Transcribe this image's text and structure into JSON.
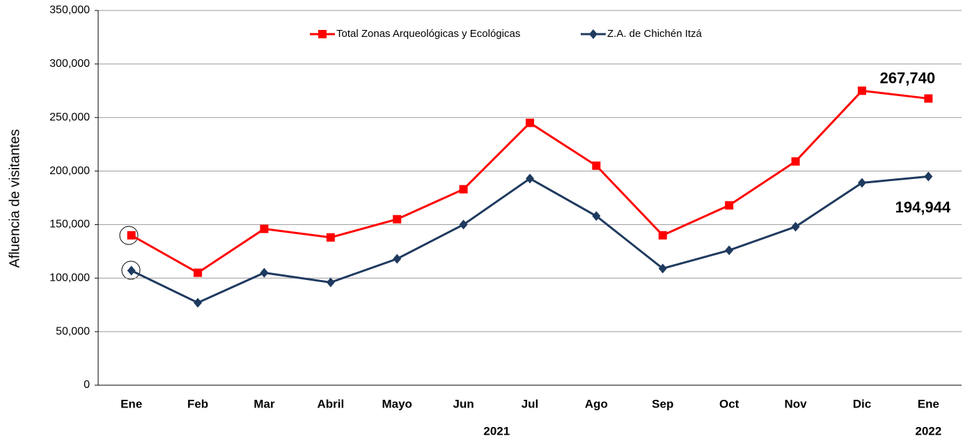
{
  "chart_data": {
    "type": "line",
    "y_label": "Afluencia de visitantes",
    "categories": [
      "Ene",
      "Feb",
      "Mar",
      "Abril",
      "Mayo",
      "Jun",
      "Jul",
      "Ago",
      "Sep",
      "Oct",
      "Nov",
      "Dic",
      "Ene"
    ],
    "year_labels": [
      "2021",
      "2022"
    ],
    "series": [
      {
        "name": "Total Zonas Arqueológicas y Ecológicas",
        "color": "#ff0000",
        "marker": "square",
        "values": [
          140000,
          105000,
          146000,
          138000,
          155000,
          183000,
          245000,
          205000,
          140000,
          168000,
          209000,
          275000,
          267740
        ],
        "value_labels": [
          null,
          null,
          null,
          null,
          null,
          null,
          null,
          null,
          null,
          null,
          null,
          null,
          "267,740"
        ]
      },
      {
        "name": "Z.A. de Chichén Itzá",
        "color": "#1f3a5f",
        "marker": "diamond",
        "values": [
          107000,
          77000,
          105000,
          96000,
          118000,
          150000,
          193000,
          158000,
          109000,
          126000,
          148000,
          189000,
          194944
        ],
        "value_labels": [
          null,
          null,
          null,
          null,
          null,
          null,
          null,
          null,
          null,
          null,
          null,
          null,
          "194,944"
        ]
      }
    ],
    "ylim": [
      0,
      350000
    ],
    "yticks": [
      0,
      {
        "value": 50000,
        "label": "50,000"
      },
      {
        "value": 100000,
        "label": "100,000"
      },
      {
        "value": 150000,
        "label": "150,000"
      },
      {
        "value": 200000,
        "label": "200,000"
      },
      {
        "value": 250000,
        "label": "250,000"
      },
      {
        "value": 300000,
        "label": "300,000"
      },
      {
        "value": 350000,
        "label": "350,000"
      }
    ],
    "grid": true,
    "legend": "top"
  }
}
